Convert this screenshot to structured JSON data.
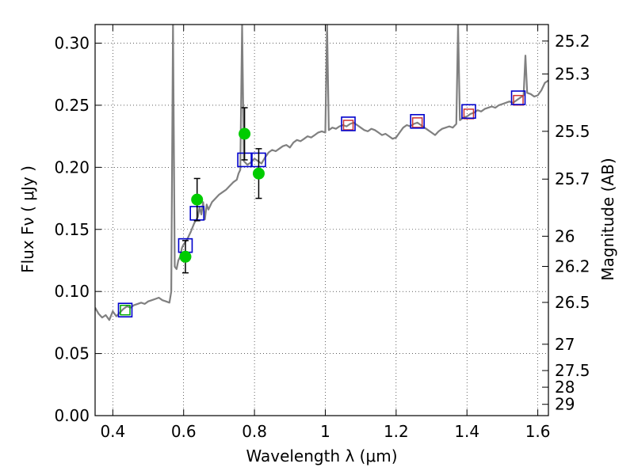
{
  "chart_data": {
    "type": "scatter",
    "xlabel": "Wavelength  λ (μm)",
    "ylabel": "Flux  Fν  ( μJy )",
    "ylabel_right": "Magnitude (AB)",
    "xlim": [
      0.35,
      1.63
    ],
    "ylim": [
      0.0,
      0.315
    ],
    "grid": true,
    "x_ticks": [
      0.4,
      0.6,
      0.8,
      1.0,
      1.2,
      1.4,
      1.6
    ],
    "x_tick_labels": [
      "0.4",
      "0.6",
      "0.8",
      "1",
      "1.2",
      "1.4",
      "1.6"
    ],
    "y_ticks": [
      0.0,
      0.05,
      0.1,
      0.15,
      0.2,
      0.25,
      0.3
    ],
    "y_tick_labels": [
      "0.00",
      "0.05",
      "0.10",
      "0.15",
      "0.20",
      "0.25",
      "0.30"
    ],
    "right_ticks": [
      {
        "flux": 0.3017,
        "label": "25.2"
      },
      {
        "flux": 0.2752,
        "label": "25.3"
      },
      {
        "flux": 0.229,
        "label": "25.5"
      },
      {
        "flux": 0.1905,
        "label": "25.7"
      },
      {
        "flux": 0.1445,
        "label": "26"
      },
      {
        "flux": 0.1202,
        "label": "26.2"
      },
      {
        "flux": 0.0912,
        "label": "26.5"
      },
      {
        "flux": 0.0575,
        "label": "27"
      },
      {
        "flux": 0.0363,
        "label": "27.5"
      },
      {
        "flux": 0.0229,
        "label": "28"
      },
      {
        "flux": 0.0091,
        "label": "29"
      }
    ],
    "sed_model": {
      "color": "#808080",
      "points": [
        [
          0.35,
          0.087
        ],
        [
          0.36,
          0.082
        ],
        [
          0.37,
          0.079
        ],
        [
          0.38,
          0.081
        ],
        [
          0.39,
          0.077
        ],
        [
          0.4,
          0.084
        ],
        [
          0.41,
          0.08
        ],
        [
          0.42,
          0.083
        ],
        [
          0.43,
          0.086
        ],
        [
          0.44,
          0.088
        ],
        [
          0.45,
          0.087
        ],
        [
          0.46,
          0.089
        ],
        [
          0.47,
          0.09
        ],
        [
          0.48,
          0.091
        ],
        [
          0.49,
          0.09
        ],
        [
          0.5,
          0.092
        ],
        [
          0.51,
          0.093
        ],
        [
          0.52,
          0.094
        ],
        [
          0.53,
          0.095
        ],
        [
          0.54,
          0.093
        ],
        [
          0.55,
          0.092
        ],
        [
          0.56,
          0.091
        ],
        [
          0.565,
          0.1
        ],
        [
          0.57,
          0.315
        ],
        [
          0.575,
          0.12
        ],
        [
          0.58,
          0.118
        ],
        [
          0.585,
          0.125
        ],
        [
          0.59,
          0.128
        ],
        [
          0.595,
          0.135
        ],
        [
          0.6,
          0.138
        ],
        [
          0.61,
          0.142
        ],
        [
          0.62,
          0.148
        ],
        [
          0.63,
          0.155
        ],
        [
          0.64,
          0.16
        ],
        [
          0.645,
          0.168
        ],
        [
          0.65,
          0.162
        ],
        [
          0.655,
          0.172
        ],
        [
          0.66,
          0.158
        ],
        [
          0.665,
          0.17
        ],
        [
          0.67,
          0.166
        ],
        [
          0.68,
          0.172
        ],
        [
          0.69,
          0.175
        ],
        [
          0.7,
          0.178
        ],
        [
          0.71,
          0.18
        ],
        [
          0.72,
          0.182
        ],
        [
          0.73,
          0.185
        ],
        [
          0.74,
          0.188
        ],
        [
          0.75,
          0.19
        ],
        [
          0.755,
          0.195
        ],
        [
          0.76,
          0.198
        ],
        [
          0.765,
          0.315
        ],
        [
          0.77,
          0.205
        ],
        [
          0.78,
          0.202
        ],
        [
          0.79,
          0.204
        ],
        [
          0.8,
          0.207
        ],
        [
          0.81,
          0.205
        ],
        [
          0.82,
          0.203
        ],
        [
          0.83,
          0.208
        ],
        [
          0.84,
          0.212
        ],
        [
          0.85,
          0.214
        ],
        [
          0.86,
          0.213
        ],
        [
          0.87,
          0.215
        ],
        [
          0.88,
          0.217
        ],
        [
          0.89,
          0.218
        ],
        [
          0.9,
          0.216
        ],
        [
          0.91,
          0.22
        ],
        [
          0.92,
          0.222
        ],
        [
          0.93,
          0.221
        ],
        [
          0.94,
          0.223
        ],
        [
          0.95,
          0.225
        ],
        [
          0.96,
          0.224
        ],
        [
          0.97,
          0.226
        ],
        [
          0.98,
          0.228
        ],
        [
          0.99,
          0.229
        ],
        [
          1.0,
          0.228
        ],
        [
          1.005,
          0.315
        ],
        [
          1.01,
          0.23
        ],
        [
          1.02,
          0.232
        ],
        [
          1.03,
          0.231
        ],
        [
          1.04,
          0.233
        ],
        [
          1.05,
          0.234
        ],
        [
          1.06,
          0.233
        ],
        [
          1.07,
          0.235
        ],
        [
          1.08,
          0.236
        ],
        [
          1.09,
          0.234
        ],
        [
          1.1,
          0.232
        ],
        [
          1.11,
          0.23
        ],
        [
          1.12,
          0.229
        ],
        [
          1.13,
          0.231
        ],
        [
          1.14,
          0.23
        ],
        [
          1.15,
          0.228
        ],
        [
          1.16,
          0.226
        ],
        [
          1.17,
          0.227
        ],
        [
          1.18,
          0.225
        ],
        [
          1.19,
          0.223
        ],
        [
          1.2,
          0.224
        ],
        [
          1.21,
          0.228
        ],
        [
          1.22,
          0.232
        ],
        [
          1.23,
          0.234
        ],
        [
          1.24,
          0.233
        ],
        [
          1.25,
          0.235
        ],
        [
          1.26,
          0.236
        ],
        [
          1.27,
          0.234
        ],
        [
          1.28,
          0.232
        ],
        [
          1.29,
          0.23
        ],
        [
          1.3,
          0.228
        ],
        [
          1.31,
          0.226
        ],
        [
          1.32,
          0.229
        ],
        [
          1.33,
          0.231
        ],
        [
          1.34,
          0.232
        ],
        [
          1.35,
          0.233
        ],
        [
          1.36,
          0.232
        ],
        [
          1.37,
          0.235
        ],
        [
          1.375,
          0.315
        ],
        [
          1.38,
          0.238
        ],
        [
          1.39,
          0.24
        ],
        [
          1.4,
          0.241
        ],
        [
          1.41,
          0.243
        ],
        [
          1.42,
          0.244
        ],
        [
          1.43,
          0.246
        ],
        [
          1.44,
          0.245
        ],
        [
          1.45,
          0.247
        ],
        [
          1.46,
          0.248
        ],
        [
          1.47,
          0.249
        ],
        [
          1.48,
          0.248
        ],
        [
          1.49,
          0.25
        ],
        [
          1.5,
          0.251
        ],
        [
          1.51,
          0.252
        ],
        [
          1.52,
          0.253
        ],
        [
          1.53,
          0.252
        ],
        [
          1.54,
          0.254
        ],
        [
          1.55,
          0.256
        ],
        [
          1.56,
          0.258
        ],
        [
          1.565,
          0.29
        ],
        [
          1.57,
          0.26
        ],
        [
          1.58,
          0.259
        ],
        [
          1.59,
          0.257
        ],
        [
          1.6,
          0.258
        ],
        [
          1.61,
          0.262
        ],
        [
          1.62,
          0.268
        ],
        [
          1.63,
          0.27
        ]
      ]
    },
    "model_photometry": {
      "color": "#0000cc",
      "points": [
        [
          0.435,
          0.085
        ],
        [
          0.605,
          0.137
        ],
        [
          0.638,
          0.163
        ],
        [
          0.772,
          0.206
        ],
        [
          0.812,
          0.206
        ],
        [
          1.065,
          0.235
        ],
        [
          1.26,
          0.237
        ],
        [
          1.405,
          0.245
        ],
        [
          1.545,
          0.256
        ]
      ]
    },
    "observed_photometry": {
      "color": "#00cc00",
      "points": [
        {
          "x": 0.605,
          "y": 0.128,
          "err": 0.013
        },
        {
          "x": 0.638,
          "y": 0.174,
          "err": 0.017
        },
        {
          "x": 0.772,
          "y": 0.227,
          "err": 0.021
        },
        {
          "x": 0.812,
          "y": 0.195,
          "err": 0.02
        }
      ]
    },
    "inner_squares": [
      {
        "x": 0.435,
        "y": 0.085,
        "color": "#00aa00"
      },
      {
        "x": 1.065,
        "y": 0.234,
        "color": "#cc3333"
      },
      {
        "x": 1.26,
        "y": 0.236,
        "color": "#cc3333"
      },
      {
        "x": 1.405,
        "y": 0.243,
        "color": "#cc3333"
      },
      {
        "x": 1.545,
        "y": 0.254,
        "color": "#cc3333"
      }
    ]
  }
}
